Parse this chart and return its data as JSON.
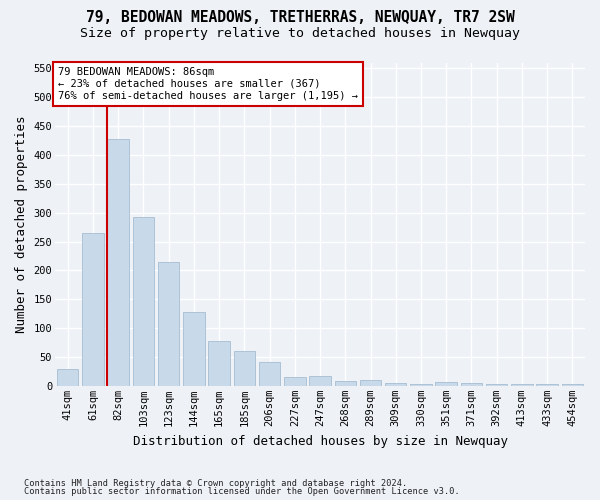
{
  "title": "79, BEDOWAN MEADOWS, TRETHERRAS, NEWQUAY, TR7 2SW",
  "subtitle": "Size of property relative to detached houses in Newquay",
  "xlabel": "Distribution of detached houses by size in Newquay",
  "ylabel": "Number of detached properties",
  "bar_labels": [
    "41sqm",
    "61sqm",
    "82sqm",
    "103sqm",
    "123sqm",
    "144sqm",
    "165sqm",
    "185sqm",
    "206sqm",
    "227sqm",
    "247sqm",
    "268sqm",
    "289sqm",
    "309sqm",
    "330sqm",
    "351sqm",
    "371sqm",
    "392sqm",
    "413sqm",
    "433sqm",
    "454sqm"
  ],
  "bar_values": [
    30,
    265,
    428,
    292,
    215,
    128,
    77,
    61,
    41,
    15,
    17,
    9,
    10,
    5,
    3,
    6,
    5,
    3,
    4,
    4,
    3
  ],
  "bar_color": "#c8d9ea",
  "bar_edge_color": "#9bb5cc",
  "ylim_max": 560,
  "yticks": [
    0,
    50,
    100,
    150,
    200,
    250,
    300,
    350,
    400,
    450,
    500,
    550
  ],
  "property_line_xidx": 1.57,
  "annotation_line1": "79 BEDOWAN MEADOWS: 86sqm",
  "annotation_line2": "← 23% of detached houses are smaller (367)",
  "annotation_line3": "76% of semi-detached houses are larger (1,195) →",
  "ann_edge_color": "#cc0000",
  "bg_color": "#eef2f7",
  "grid_color": "#ffffff",
  "footer1": "Contains HM Land Registry data © Crown copyright and database right 2024.",
  "footer2": "Contains public sector information licensed under the Open Government Licence v3.0.",
  "title_fontsize": 10.5,
  "subtitle_fontsize": 9.5,
  "axis_label_fontsize": 9,
  "tick_fontsize": 7.5,
  "footer_fontsize": 6.2
}
